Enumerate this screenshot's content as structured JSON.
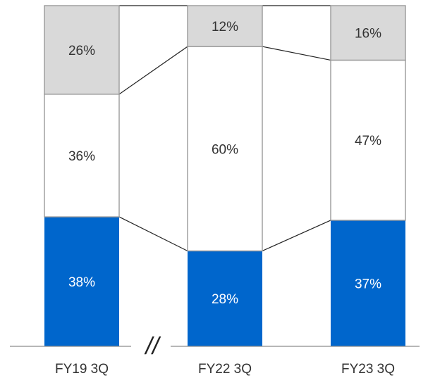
{
  "chart_data": {
    "type": "bar",
    "stacked": true,
    "normalized_percent": true,
    "categories": [
      "FY19 3Q",
      "FY22 3Q",
      "FY23 3Q"
    ],
    "series": [
      {
        "values": [
          38,
          28,
          37
        ],
        "labels": [
          "38%",
          "28%",
          "37%"
        ],
        "color": "#0066CC",
        "text_color": "#ffffff"
      },
      {
        "values": [
          36,
          60,
          47
        ],
        "labels": [
          "36%",
          "60%",
          "47%"
        ],
        "color": "#FFFFFF",
        "text_color": "#333333"
      },
      {
        "values": [
          26,
          12,
          16
        ],
        "labels": [
          "26%",
          "12%",
          "16%"
        ],
        "color": "#D9D9D9",
        "text_color": "#333333"
      }
    ],
    "axis_break_marker": "//",
    "title": "",
    "xlabel": "",
    "ylabel": "",
    "ylim": [
      0,
      100
    ],
    "grid": false,
    "legend": "none"
  },
  "colors": {
    "blue": "#0066CC",
    "gray": "#D9D9D9",
    "outline": "#999999",
    "connector": "#222222"
  }
}
